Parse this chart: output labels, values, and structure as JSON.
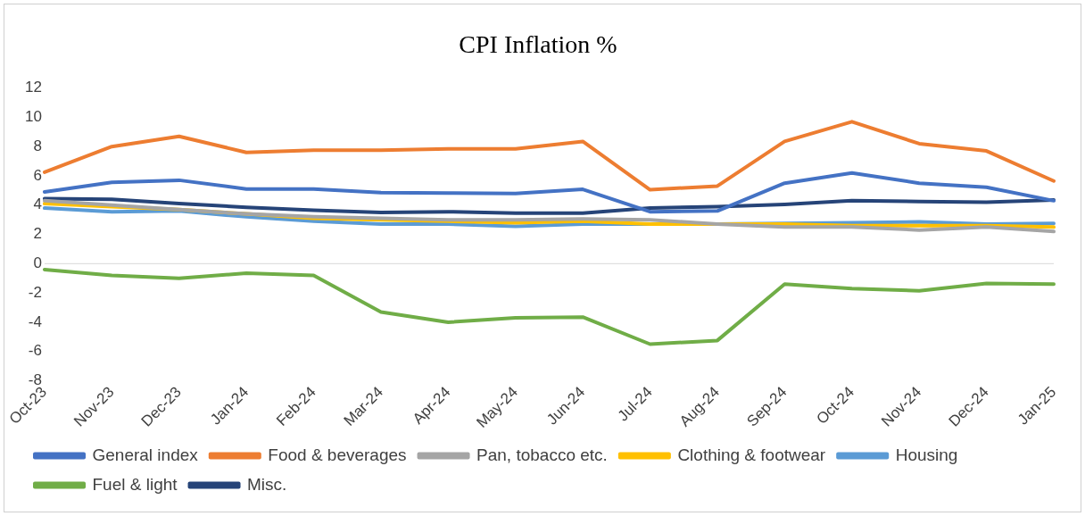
{
  "chart_data": {
    "type": "line",
    "title": "CPI Inflation %",
    "categories": [
      "Oct-23",
      "Nov-23",
      "Dec-23",
      "Jan-24",
      "Feb-24",
      "Mar-24",
      "Apr-24",
      "May-24",
      "Jun-24",
      "Jul-24",
      "Aug-24",
      "Sep-24",
      "Oct-24",
      "Nov-24",
      "Dec-24",
      "Jan-25"
    ],
    "series": [
      {
        "name": "General index",
        "color": "#4472c4",
        "values": [
          4.9,
          5.55,
          5.7,
          5.1,
          5.1,
          4.85,
          4.83,
          4.8,
          5.08,
          3.55,
          3.6,
          5.5,
          6.2,
          5.5,
          5.22,
          4.3
        ]
      },
      {
        "name": "Food & beverages",
        "color": "#ed7d31",
        "values": [
          6.25,
          8.0,
          8.7,
          7.6,
          7.75,
          7.75,
          7.85,
          7.85,
          8.35,
          5.05,
          5.3,
          8.35,
          9.7,
          8.2,
          7.7,
          5.65
        ]
      },
      {
        "name": "Pan, tobacco etc.",
        "color": "#a5a5a5",
        "values": [
          4.3,
          4.0,
          3.7,
          3.4,
          3.2,
          3.1,
          3.0,
          3.0,
          3.05,
          3.0,
          2.7,
          2.5,
          2.5,
          2.3,
          2.5,
          2.2
        ]
      },
      {
        "name": "Clothing & footwear",
        "color": "#ffc000",
        "values": [
          4.1,
          3.9,
          3.7,
          3.4,
          3.1,
          3.0,
          2.9,
          2.8,
          2.9,
          2.7,
          2.7,
          2.7,
          2.6,
          2.6,
          2.6,
          2.5
        ]
      },
      {
        "name": "Housing",
        "color": "#5b9bd5",
        "values": [
          3.8,
          3.55,
          3.6,
          3.2,
          2.9,
          2.7,
          2.7,
          2.55,
          2.7,
          2.7,
          2.7,
          2.75,
          2.8,
          2.85,
          2.7,
          2.75
        ]
      },
      {
        "name": "Fuel & light",
        "color": "#70ad47",
        "values": [
          -0.4,
          -0.8,
          -1.0,
          -0.65,
          -0.8,
          -3.3,
          -4.0,
          -3.7,
          -3.65,
          -5.5,
          -5.25,
          -1.4,
          -1.7,
          -1.85,
          -1.35,
          -1.4
        ]
      },
      {
        "name": "Misc.",
        "color": "#264478",
        "values": [
          4.45,
          4.4,
          4.1,
          3.85,
          3.65,
          3.5,
          3.55,
          3.45,
          3.45,
          3.8,
          3.9,
          4.05,
          4.3,
          4.25,
          4.2,
          4.35
        ]
      }
    ],
    "ylim": [
      -8,
      12
    ],
    "yticks": [
      -8,
      -6,
      -4,
      -2,
      0,
      2,
      4,
      6,
      8,
      10,
      12
    ],
    "grid": false,
    "ref_lines": [
      {
        "axis": "y",
        "value": 0,
        "color": "#d9d9d9"
      }
    ],
    "legend": "bottom",
    "marker": "none",
    "line_style": "solid"
  }
}
